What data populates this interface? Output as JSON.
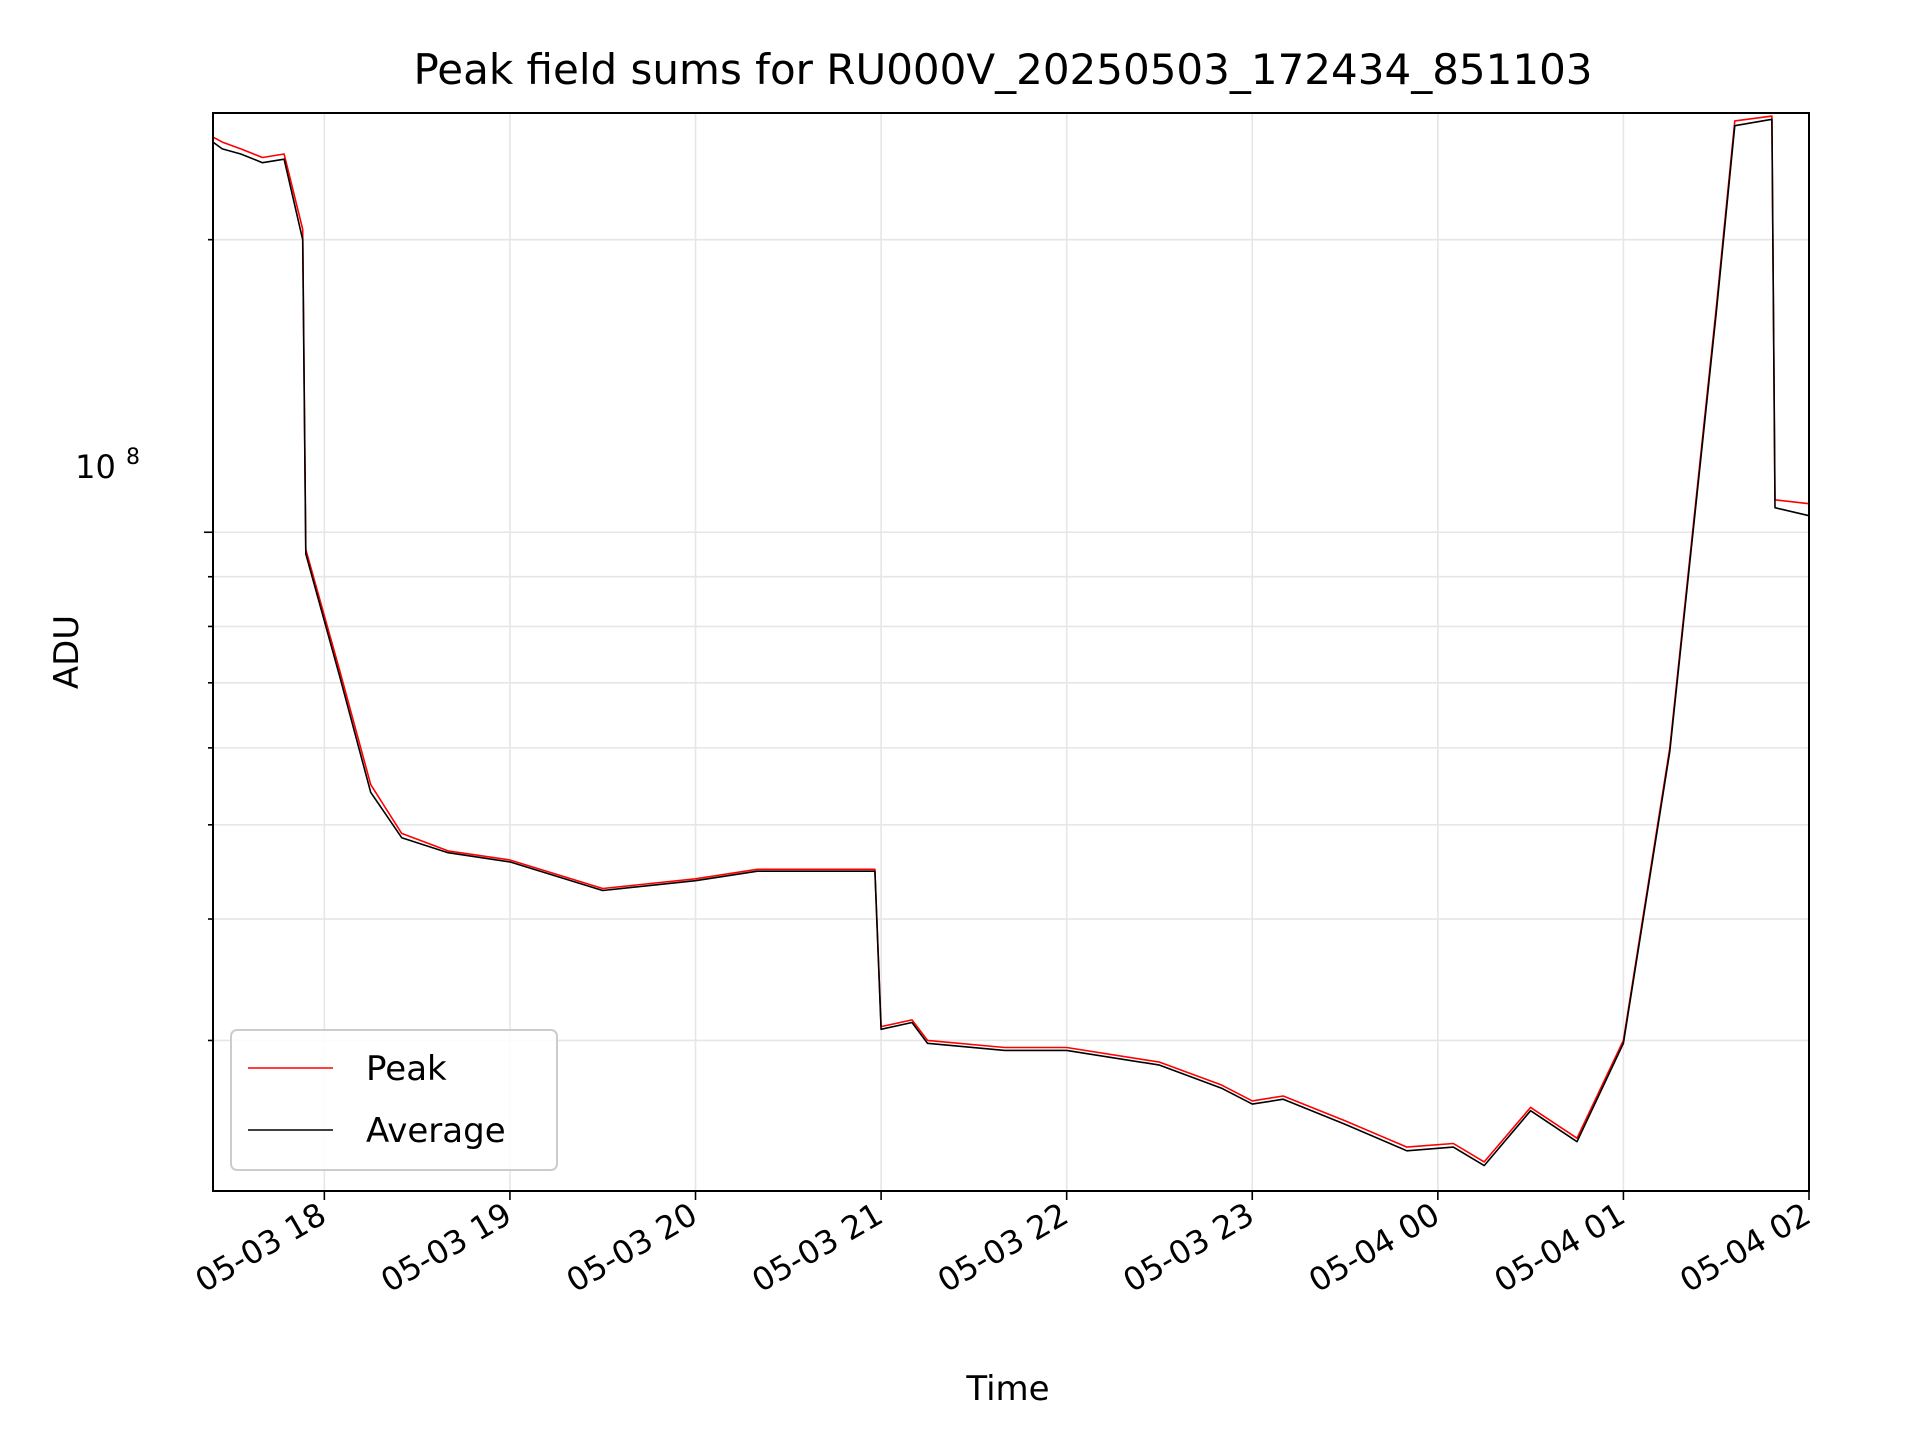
{
  "chart_data": {
    "type": "line",
    "title": "Peak field sums for RU000V_20250503_172434_851103",
    "xlabel": "Time",
    "ylabel": "ADU",
    "y_scale": "log",
    "y_major_tick_labels": [
      "10",
      "8"
    ],
    "x_ticks": [
      "05-03 18",
      "05-03 19",
      "05-03 20",
      "05-03 21",
      "05-03 22",
      "05-03 23",
      "05-04 00",
      "05-04 01",
      "05-04 02"
    ],
    "xlim": [
      "2025-05-03 17:24",
      "2025-05-04 02:00"
    ],
    "ylim": [
      21000000,
      270000000
    ],
    "grid": true,
    "legend_position": "lower left",
    "series": [
      {
        "name": "Peak",
        "color": "#ff0000",
        "points": [
          [
            "2025-05-03 17:24",
            255000000
          ],
          [
            "2025-05-03 17:27",
            252000000
          ],
          [
            "2025-05-03 17:33",
            248000000
          ],
          [
            "2025-05-03 17:40",
            243000000
          ],
          [
            "2025-05-03 17:47",
            245000000
          ],
          [
            "2025-05-03 17:53",
            205000000
          ],
          [
            "2025-05-03 17:54",
            96000000
          ],
          [
            "2025-05-03 18:05",
            72000000
          ],
          [
            "2025-05-03 18:15",
            55000000
          ],
          [
            "2025-05-03 18:25",
            49000000
          ],
          [
            "2025-05-03 18:40",
            47000000
          ],
          [
            "2025-05-03 19:00",
            46000000
          ],
          [
            "2025-05-03 19:30",
            43000000
          ],
          [
            "2025-05-03 20:00",
            44000000
          ],
          [
            "2025-05-03 20:20",
            45000000
          ],
          [
            "2025-05-03 20:40",
            45000000
          ],
          [
            "2025-05-03 20:58",
            45000000
          ],
          [
            "2025-05-03 21:00",
            31000000
          ],
          [
            "2025-05-03 21:10",
            31500000
          ],
          [
            "2025-05-03 21:15",
            30000000
          ],
          [
            "2025-05-03 21:40",
            29500000
          ],
          [
            "2025-05-03 22:00",
            29500000
          ],
          [
            "2025-05-03 22:30",
            28500000
          ],
          [
            "2025-05-03 22:50",
            27000000
          ],
          [
            "2025-05-03 23:00",
            26000000
          ],
          [
            "2025-05-03 23:10",
            26300000
          ],
          [
            "2025-05-03 23:30",
            24800000
          ],
          [
            "2025-05-03 23:50",
            23300000
          ],
          [
            "2025-05-04 00:05",
            23500000
          ],
          [
            "2025-05-04 00:15",
            22500000
          ],
          [
            "2025-05-04 00:30",
            25600000
          ],
          [
            "2025-05-04 00:45",
            23800000
          ],
          [
            "2025-05-04 01:00",
            30000000
          ],
          [
            "2025-05-04 01:15",
            60000000
          ],
          [
            "2025-05-04 01:30",
            170000000
          ],
          [
            "2025-05-04 01:36",
            265000000
          ],
          [
            "2025-05-04 01:48",
            268000000
          ],
          [
            "2025-05-04 01:49",
            108000000
          ],
          [
            "2025-05-04 02:00",
            107000000
          ]
        ]
      },
      {
        "name": "Average",
        "color": "#000000",
        "points": [
          [
            "2025-05-03 17:24",
            252000000
          ],
          [
            "2025-05-03 17:27",
            248000000
          ],
          [
            "2025-05-03 17:33",
            245000000
          ],
          [
            "2025-05-03 17:40",
            240000000
          ],
          [
            "2025-05-03 17:47",
            242000000
          ],
          [
            "2025-05-03 17:53",
            200000000
          ],
          [
            "2025-05-03 17:54",
            95000000
          ],
          [
            "2025-05-03 18:05",
            71000000
          ],
          [
            "2025-05-03 18:15",
            54000000
          ],
          [
            "2025-05-03 18:25",
            48500000
          ],
          [
            "2025-05-03 18:40",
            46800000
          ],
          [
            "2025-05-03 19:00",
            45800000
          ],
          [
            "2025-05-03 19:30",
            42800000
          ],
          [
            "2025-05-03 20:00",
            43800000
          ],
          [
            "2025-05-03 20:20",
            44800000
          ],
          [
            "2025-05-03 20:40",
            44800000
          ],
          [
            "2025-05-03 20:58",
            44800000
          ],
          [
            "2025-05-03 21:00",
            30800000
          ],
          [
            "2025-05-03 21:10",
            31300000
          ],
          [
            "2025-05-03 21:15",
            29800000
          ],
          [
            "2025-05-03 21:40",
            29300000
          ],
          [
            "2025-05-03 22:00",
            29300000
          ],
          [
            "2025-05-03 22:30",
            28300000
          ],
          [
            "2025-05-03 22:50",
            26800000
          ],
          [
            "2025-05-03 23:00",
            25800000
          ],
          [
            "2025-05-03 23:10",
            26100000
          ],
          [
            "2025-05-03 23:30",
            24600000
          ],
          [
            "2025-05-03 23:50",
            23100000
          ],
          [
            "2025-05-04 00:05",
            23300000
          ],
          [
            "2025-05-04 00:15",
            22300000
          ],
          [
            "2025-05-04 00:30",
            25400000
          ],
          [
            "2025-05-04 00:45",
            23600000
          ],
          [
            "2025-05-04 01:00",
            29800000
          ],
          [
            "2025-05-04 01:15",
            59500000
          ],
          [
            "2025-05-04 01:30",
            168000000
          ],
          [
            "2025-05-04 01:36",
            262000000
          ],
          [
            "2025-05-04 01:48",
            266000000
          ],
          [
            "2025-05-04 01:49",
            106000000
          ],
          [
            "2025-05-04 02:00",
            104000000
          ]
        ]
      }
    ]
  }
}
